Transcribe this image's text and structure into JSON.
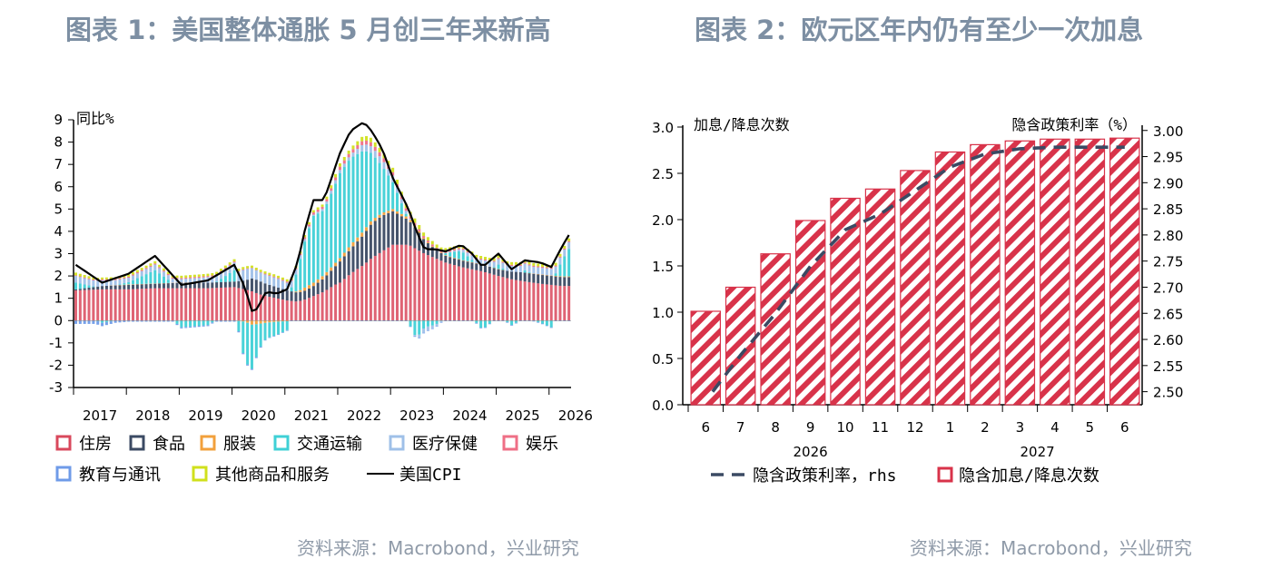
{
  "charts": {
    "left_title": "图表 1：美国整体通胀 5 月创三年来新高",
    "right_title": "图表 2：欧元区年内仍有至少一次加息",
    "source_left": "资料来源：Macrobond，兴业研究",
    "source_right": "资料来源：Macrobond，兴业研究"
  },
  "colors": {
    "住房": "#d9485c",
    "食品": "#3b4a63",
    "服装": "#f2a03c",
    "交通运输": "#3fd0d6",
    "医疗保健": "#9fc0e8",
    "娱乐": "#ef6f86",
    "教育与通讯": "#6f9be8",
    "其他商品和服务": "#d0e01c",
    "美国CPI": "#000000",
    "隐含政策利率": "#3b4a63",
    "bar_stripe": "#d8334a"
  },
  "chart_data": [
    {
      "type": "bar",
      "stacked": true,
      "ylabel": "同比%",
      "ylim": [
        -3,
        9
      ],
      "yticks": [
        9,
        8,
        7,
        6,
        5,
        4,
        3,
        2,
        1,
        0,
        -1,
        -2,
        -3
      ],
      "xticks": [
        "2017",
        "2018",
        "2019",
        "2020",
        "2021",
        "2022",
        "2023",
        "2024",
        "2025",
        "2026"
      ],
      "x_range": [
        "2017-01",
        "2026-05"
      ],
      "anchors": {
        "dates": [
          2017.0,
          2017.5,
          2018.0,
          2018.5,
          2019.0,
          2019.5,
          2020.0,
          2020.2,
          2020.35,
          2020.45,
          2020.6,
          2020.8,
          2021.0,
          2021.2,
          2021.35,
          2021.5,
          2021.7,
          2021.9,
          2022.0,
          2022.2,
          2022.45,
          2022.6,
          2022.8,
          2023.0,
          2023.3,
          2023.45,
          2023.6,
          2023.8,
          2024.0,
          2024.3,
          2024.5,
          2024.7,
          2025.0,
          2025.25,
          2025.5,
          2025.8,
          2026.0,
          2026.2,
          2026.4
        ],
        "美国CPI": [
          2.5,
          1.7,
          2.1,
          2.9,
          1.6,
          1.8,
          2.5,
          1.5,
          0.3,
          0.6,
          1.3,
          1.2,
          1.4,
          2.6,
          4.2,
          5.4,
          5.4,
          6.8,
          7.5,
          8.5,
          8.9,
          8.5,
          7.7,
          6.4,
          5.0,
          4.0,
          3.2,
          3.2,
          3.1,
          3.4,
          3.0,
          2.4,
          3.0,
          2.3,
          2.7,
          2.6,
          2.4,
          3.3,
          4.1
        ],
        "住房": [
          1.35,
          1.4,
          1.4,
          1.45,
          1.45,
          1.45,
          1.5,
          1.4,
          1.3,
          1.2,
          1.1,
          1.0,
          0.9,
          0.85,
          0.95,
          1.1,
          1.3,
          1.6,
          1.7,
          2.1,
          2.5,
          2.8,
          3.1,
          3.4,
          3.4,
          3.2,
          3.0,
          2.8,
          2.6,
          2.4,
          2.3,
          2.2,
          2.0,
          1.85,
          1.75,
          1.65,
          1.6,
          1.55,
          1.55
        ],
        "食品": [
          0.05,
          0.15,
          0.2,
          0.2,
          0.25,
          0.25,
          0.25,
          0.4,
          0.6,
          0.6,
          0.55,
          0.5,
          0.45,
          0.4,
          0.4,
          0.45,
          0.6,
          0.8,
          0.95,
          1.1,
          1.35,
          1.55,
          1.6,
          1.5,
          1.1,
          0.9,
          0.6,
          0.4,
          0.3,
          0.3,
          0.3,
          0.3,
          0.3,
          0.35,
          0.4,
          0.4,
          0.4,
          0.4,
          0.4
        ],
        "服装": [
          0.0,
          0.0,
          0.02,
          0.01,
          0.01,
          0.0,
          0.0,
          -0.05,
          -0.2,
          -0.15,
          -0.1,
          -0.05,
          -0.03,
          0.05,
          0.15,
          0.15,
          0.15,
          0.15,
          0.15,
          0.18,
          0.18,
          0.15,
          0.12,
          0.1,
          0.1,
          0.08,
          0.05,
          0.03,
          0.03,
          0.02,
          0.02,
          0.01,
          0.01,
          0.0,
          0.0,
          0.02,
          0.02,
          0.03,
          0.03
        ],
        "交通运输": [
          0.3,
          -0.1,
          0.1,
          0.6,
          -0.3,
          -0.2,
          0.5,
          -1.8,
          -2.0,
          -1.2,
          -0.7,
          -0.6,
          -0.4,
          1.0,
          2.2,
          3.0,
          2.9,
          3.5,
          3.8,
          3.9,
          3.6,
          3.0,
          2.1,
          1.2,
          -0.1,
          -0.8,
          -0.3,
          -0.2,
          0.1,
          0.4,
          0.1,
          -0.4,
          0.2,
          -0.2,
          0.1,
          -0.1,
          -0.3,
          0.7,
          1.5
        ],
        "医疗保健": [
          0.3,
          0.25,
          0.2,
          0.25,
          0.15,
          0.25,
          0.35,
          0.5,
          0.45,
          0.4,
          0.4,
          0.4,
          0.35,
          0.2,
          0.1,
          0.05,
          0.1,
          0.15,
          0.15,
          0.15,
          0.3,
          0.3,
          0.3,
          0.3,
          0.1,
          -0.1,
          -0.2,
          -0.1,
          0.0,
          0.1,
          0.2,
          0.2,
          0.25,
          0.25,
          0.3,
          0.3,
          0.3,
          0.3,
          0.3
        ],
        "娱乐": [
          0.03,
          0.05,
          0.05,
          0.05,
          0.05,
          0.05,
          0.05,
          0.03,
          0.02,
          0.02,
          0.04,
          0.04,
          0.05,
          0.06,
          0.08,
          0.1,
          0.1,
          0.12,
          0.15,
          0.15,
          0.18,
          0.18,
          0.18,
          0.15,
          0.12,
          0.1,
          0.08,
          0.08,
          0.07,
          0.06,
          0.05,
          0.05,
          0.05,
          0.05,
          0.05,
          0.05,
          0.05,
          0.05,
          0.05
        ],
        "教育与通讯": [
          -0.15,
          -0.15,
          -0.05,
          -0.05,
          -0.05,
          -0.05,
          -0.05,
          -0.05,
          -0.05,
          -0.05,
          -0.03,
          -0.03,
          -0.03,
          -0.03,
          -0.03,
          -0.03,
          -0.03,
          -0.03,
          -0.03,
          -0.03,
          -0.03,
          -0.03,
          -0.03,
          -0.03,
          -0.03,
          -0.03,
          -0.03,
          -0.03,
          -0.03,
          -0.03,
          -0.03,
          -0.03,
          -0.03,
          -0.03,
          -0.03,
          -0.03,
          -0.03,
          -0.03,
          -0.03
        ],
        "其他商品和服务": [
          0.12,
          0.08,
          0.1,
          0.1,
          0.1,
          0.1,
          0.1,
          0.1,
          0.1,
          0.1,
          0.1,
          0.1,
          0.1,
          0.1,
          0.1,
          0.1,
          0.1,
          0.15,
          0.15,
          0.15,
          0.2,
          0.2,
          0.2,
          0.2,
          0.2,
          0.2,
          0.15,
          0.15,
          0.15,
          0.12,
          0.12,
          0.12,
          0.12,
          0.12,
          0.12,
          0.12,
          0.12,
          0.12,
          0.12
        ]
      },
      "legend": [
        {
          "name": "住房",
          "style": "bar"
        },
        {
          "name": "食品",
          "style": "bar"
        },
        {
          "name": "服装",
          "style": "bar"
        },
        {
          "name": "交通运输",
          "style": "bar"
        },
        {
          "name": "医疗保健",
          "style": "bar"
        },
        {
          "name": "娱乐",
          "style": "bar"
        },
        {
          "name": "教育与通讯",
          "style": "bar"
        },
        {
          "name": "其他商品和服务",
          "style": "bar"
        },
        {
          "name": "美国CPI",
          "style": "line"
        }
      ],
      "legend_placement": "bottom"
    },
    {
      "type": "bar+line",
      "left_axis_label": "加息/降息次数",
      "right_axis_label": "隐含政策利率（%）",
      "y_left": {
        "ylim": [
          0.0,
          3.0
        ],
        "ticks": [
          "3.0",
          "2.5",
          "2.0",
          "1.5",
          "1.0",
          "0.5",
          "0.0"
        ]
      },
      "y_right": {
        "ylim": [
          2.475,
          3.01
        ],
        "ticks": [
          "3.00",
          "2.95",
          "2.90",
          "2.85",
          "2.80",
          "2.75",
          "2.70",
          "2.65",
          "2.60",
          "2.55",
          "2.50"
        ]
      },
      "categories": [
        "6",
        "7",
        "8",
        "9",
        "10",
        "11",
        "12",
        "1",
        "2",
        "3",
        "4",
        "5",
        "6"
      ],
      "years": [
        {
          "label": "2026",
          "center_index": 3
        },
        {
          "label": "2027",
          "center_index": 9.5
        }
      ],
      "bars": {
        "name": "隐含加息/降息次数",
        "values": [
          1.01,
          1.27,
          1.63,
          1.99,
          2.23,
          2.33,
          2.53,
          2.73,
          2.81,
          2.85,
          2.87,
          2.87,
          2.88
        ]
      },
      "line": {
        "name": "隐含政策利率, rhs",
        "x_start": 0.2,
        "values": [
          2.5,
          2.57,
          2.65,
          2.74,
          2.81,
          2.84,
          2.885,
          2.93,
          2.955,
          2.965,
          2.968,
          2.968,
          2.968
        ]
      },
      "legend": [
        {
          "name": "隐含政策利率，rhs",
          "style": "dashed-line"
        },
        {
          "name": "隐含加息/降息次数",
          "style": "striped-bar"
        }
      ],
      "legend_placement": "bottom"
    }
  ]
}
